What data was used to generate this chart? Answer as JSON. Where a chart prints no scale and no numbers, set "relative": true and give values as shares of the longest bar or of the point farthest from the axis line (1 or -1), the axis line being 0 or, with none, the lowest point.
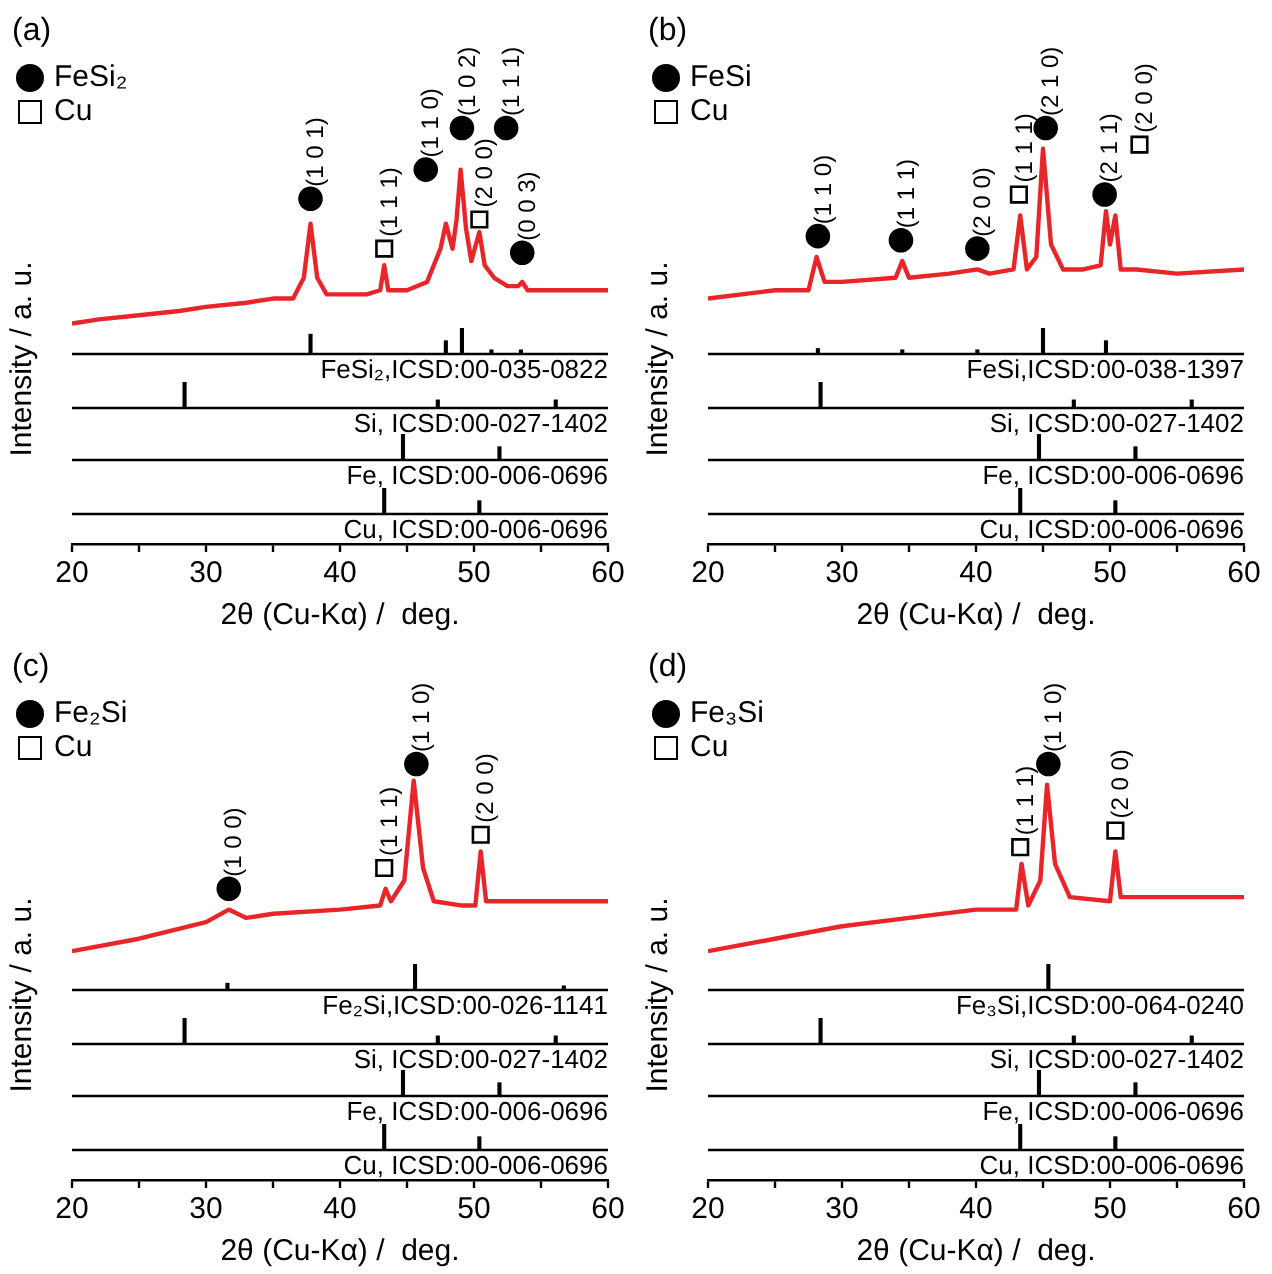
{
  "chart_data": [
    {
      "type": "line",
      "title": "(a)",
      "xlabel": "2θ (Cu-Kα) /  deg.",
      "ylabel": "Intensity / a. u.",
      "relative": true,
      "xlim": [
        20,
        60
      ],
      "xticks": [
        20,
        {
          "value": 25,
          "label": null
        },
        30,
        {
          "value": 35,
          "label": null
        },
        40,
        {
          "value": 45,
          "label": null
        },
        50,
        {
          "value": 55,
          "label": null
        },
        60
      ],
      "tick_labels": "x",
      "legend": "top left",
      "series": [
        {
          "type": "line",
          "color": "#e8262a",
          "x": [
            20,
            22,
            25,
            28,
            30,
            33,
            35,
            36.5,
            37.3,
            37.8,
            38.3,
            39,
            40,
            42,
            43,
            43.3,
            43.6,
            45,
            46.5,
            47.5,
            47.9,
            48.4,
            48.7,
            49,
            49.4,
            49.8,
            50.4,
            50.8,
            51.5,
            52.5,
            53.3,
            53.6,
            54,
            55,
            57,
            60
          ],
          "values": [
            0.53,
            0.54,
            0.55,
            0.56,
            0.57,
            0.58,
            0.59,
            0.59,
            0.64,
            0.77,
            0.64,
            0.6,
            0.6,
            0.6,
            0.61,
            0.67,
            0.61,
            0.61,
            0.63,
            0.71,
            0.77,
            0.71,
            0.78,
            0.9,
            0.76,
            0.68,
            0.75,
            0.67,
            0.64,
            0.62,
            0.62,
            0.63,
            0.61,
            0.61,
            0.61,
            0.61
          ]
        },
        {
          "type": "scatter",
          "name": "FeSi₂",
          "color": "#000000",
          "marker": "circle",
          "x": [
            37.8,
            46.4,
            49.1,
            52.4,
            53.6
          ],
          "values": [
            0.83,
            0.9,
            1,
            1,
            0.7
          ]
        },
        {
          "type": "scatter",
          "name": "Cu",
          "color": "#000000",
          "marker": "square",
          "x": [
            43.3,
            50.4
          ],
          "values": [
            0.71,
            0.78
          ]
        }
      ],
      "annotations": [
        {
          "text": "(1 0 1)",
          "x": 37.8,
          "y": 0.83
        },
        {
          "text": "(1 1 0)",
          "x": 46.4,
          "y": 0.9
        },
        {
          "text": "(1 0 2)",
          "x": 49.1,
          "y": 1
        },
        {
          "text": "(1 1 1)",
          "x": 52.4,
          "y": 1
        },
        {
          "text": "(0 0 3)",
          "x": 53.6,
          "y": 0.7
        },
        {
          "text": "(1 1 1)",
          "x": 43.3,
          "y": 0.71
        },
        {
          "text": "(2 0 0)",
          "x": 50.4,
          "y": 0.78
        }
      ]
    },
    {
      "type": "bar",
      "title": "FeSi₂,ICSD:00-035-0822",
      "relative": true,
      "color": "#000000",
      "xlim": [
        20,
        60
      ],
      "tick_labels": false,
      "x": [
        37.8,
        47.9,
        49.1,
        51.3,
        53.5
      ],
      "values": [
        0.75,
        0.5,
        1,
        0.15,
        0.15
      ]
    },
    {
      "type": "bar",
      "title": "Si, ICSD:00-027-1402",
      "relative": true,
      "color": "#000000",
      "xlim": [
        20,
        60
      ],
      "tick_labels": false,
      "x": [
        28.4,
        47.3,
        56.1
      ],
      "values": [
        1,
        0.3,
        0.3
      ]
    },
    {
      "type": "bar",
      "title": "Fe, ICSD:00-006-0696",
      "relative": true,
      "color": "#000000",
      "xlim": [
        20,
        60
      ],
      "tick_labels": false,
      "x": [
        44.7,
        51.9
      ],
      "values": [
        1,
        0.5
      ]
    },
    {
      "type": "bar",
      "title": "Cu, ICSD:00-006-0696",
      "relative": true,
      "color": "#000000",
      "xlim": [
        20,
        60
      ],
      "tick_labels": false,
      "x": [
        43.3,
        50.4
      ],
      "values": [
        1,
        0.5
      ]
    },
    {
      "type": "line",
      "title": "(b)",
      "xlabel": "2θ (Cu-Kα) /  deg.",
      "ylabel": "Intensity / a. u.",
      "relative": true,
      "xlim": [
        20,
        60
      ],
      "xticks": [
        20,
        {
          "value": 25,
          "label": null
        },
        30,
        {
          "value": 35,
          "label": null
        },
        40,
        {
          "value": 45,
          "label": null
        },
        50,
        {
          "value": 55,
          "label": null
        },
        60
      ],
      "tick_labels": "x",
      "legend": "top left",
      "series": [
        {
          "type": "line",
          "color": "#e8262a",
          "x": [
            20,
            25,
            27.5,
            28.1,
            28.7,
            30,
            34,
            34.5,
            35,
            38,
            40.1,
            41,
            42.8,
            43.3,
            43.8,
            44.5,
            45,
            45.6,
            46.5,
            48,
            49.3,
            49.7,
            50,
            50.4,
            50.8,
            52,
            55,
            60
          ],
          "values": [
            0.59,
            0.61,
            0.61,
            0.69,
            0.63,
            0.63,
            0.64,
            0.68,
            0.64,
            0.65,
            0.66,
            0.65,
            0.66,
            0.79,
            0.66,
            0.69,
            0.95,
            0.72,
            0.66,
            0.66,
            0.67,
            0.8,
            0.72,
            0.79,
            0.66,
            0.66,
            0.65,
            0.66
          ]
        },
        {
          "type": "scatter",
          "name": "FeSi",
          "color": "#000000",
          "marker": "circle",
          "x": [
            28.2,
            34.4,
            40.1,
            45.2,
            49.6
          ],
          "values": [
            0.74,
            0.73,
            0.71,
            1,
            0.84
          ]
        },
        {
          "type": "scatter",
          "name": "Cu",
          "color": "#000000",
          "marker": "square",
          "x": [
            43.2,
            52.2
          ],
          "values": [
            0.84,
            0.96
          ]
        }
      ],
      "annotations": [
        {
          "text": "(1 1 0)",
          "x": 28.2,
          "y": 0.74
        },
        {
          "text": "(1 1 1)",
          "x": 34.4,
          "y": 0.73
        },
        {
          "text": "(2 0 0)",
          "x": 40.1,
          "y": 0.71
        },
        {
          "text": "(2 1 0)",
          "x": 45.2,
          "y": 1
        },
        {
          "text": "(2 1 1)",
          "x": 49.6,
          "y": 0.84
        },
        {
          "text": "(1 1 1)",
          "x": 43.2,
          "y": 0.84
        },
        {
          "text": "(2 0 0)",
          "x": 52.2,
          "y": 0.96
        }
      ]
    },
    {
      "type": "bar",
      "title": "FeSi,ICSD:00-038-1397",
      "relative": true,
      "color": "#000000",
      "xlim": [
        20,
        60
      ],
      "tick_labels": false,
      "x": [
        28.2,
        34.5,
        40.1,
        45,
        49.7
      ],
      "values": [
        0.2,
        0.15,
        0.15,
        1,
        0.5
      ]
    },
    {
      "type": "bar",
      "title": "Si, ICSD:00-027-1402",
      "relative": true,
      "color": "#000000",
      "xlim": [
        20,
        60
      ],
      "tick_labels": false,
      "x": [
        28.4,
        47.3,
        56.1
      ],
      "values": [
        1,
        0.3,
        0.3
      ]
    },
    {
      "type": "bar",
      "title": "Fe, ICSD:00-006-0696",
      "relative": true,
      "color": "#000000",
      "xlim": [
        20,
        60
      ],
      "tick_labels": false,
      "x": [
        44.7,
        51.9
      ],
      "values": [
        1,
        0.5
      ]
    },
    {
      "type": "bar",
      "title": "Cu, ICSD:00-006-0696",
      "relative": true,
      "color": "#000000",
      "xlim": [
        20,
        60
      ],
      "tick_labels": false,
      "x": [
        43.3,
        50.4
      ],
      "values": [
        1,
        0.5
      ]
    },
    {
      "type": "line",
      "title": "(c)",
      "xlabel": "2θ (Cu-Kα) /  deg.",
      "ylabel": "Intensity / a. u.",
      "relative": true,
      "xlim": [
        20,
        60
      ],
      "xticks": [
        20,
        {
          "value": 25,
          "label": null
        },
        30,
        {
          "value": 35,
          "label": null
        },
        40,
        {
          "value": 45,
          "label": null
        },
        50,
        {
          "value": 55,
          "label": null
        },
        60
      ],
      "tick_labels": "x",
      "legend": "top left",
      "series": [
        {
          "type": "line",
          "color": "#e8262a",
          "x": [
            20,
            25,
            30,
            31.7,
            33,
            35,
            40,
            43,
            43.4,
            43.8,
            44.8,
            45.5,
            46.2,
            47,
            49,
            50.1,
            50.5,
            50.9,
            55,
            60
          ],
          "values": [
            0.55,
            0.58,
            0.62,
            0.65,
            0.63,
            0.64,
            0.65,
            0.66,
            0.7,
            0.67,
            0.72,
            0.96,
            0.75,
            0.67,
            0.66,
            0.66,
            0.79,
            0.67,
            0.67,
            0.67
          ]
        },
        {
          "type": "scatter",
          "name": "Fe₂Si",
          "color": "#000000",
          "marker": "circle",
          "x": [
            31.7,
            45.7
          ],
          "values": [
            0.7,
            1
          ]
        },
        {
          "type": "scatter",
          "name": "Cu",
          "color": "#000000",
          "marker": "square",
          "x": [
            43.3,
            50.5
          ],
          "values": [
            0.75,
            0.83
          ]
        }
      ],
      "annotations": [
        {
          "text": "(1 0 0)",
          "x": 31.7,
          "y": 0.7
        },
        {
          "text": "(1 1 0)",
          "x": 45.7,
          "y": 1
        },
        {
          "text": "(1 1 1)",
          "x": 43.3,
          "y": 0.75
        },
        {
          "text": "(2 0 0)",
          "x": 50.5,
          "y": 0.83
        }
      ]
    },
    {
      "type": "bar",
      "title": "Fe₂Si,ICSD:00-026-1141",
      "relative": true,
      "color": "#000000",
      "xlim": [
        20,
        60
      ],
      "tick_labels": false,
      "x": [
        31.6,
        45.6,
        56.7
      ],
      "values": [
        0.25,
        1,
        0.15
      ]
    },
    {
      "type": "bar",
      "title": "Si, ICSD:00-027-1402",
      "relative": true,
      "color": "#000000",
      "xlim": [
        20,
        60
      ],
      "tick_labels": false,
      "x": [
        28.4,
        47.3,
        56.1
      ],
      "values": [
        1,
        0.3,
        0.3
      ]
    },
    {
      "type": "bar",
      "title": "Fe, ICSD:00-006-0696",
      "relative": true,
      "color": "#000000",
      "xlim": [
        20,
        60
      ],
      "tick_labels": false,
      "x": [
        44.7,
        51.9
      ],
      "values": [
        1,
        0.5
      ]
    },
    {
      "type": "bar",
      "title": "Cu, ICSD:00-006-0696",
      "relative": true,
      "color": "#000000",
      "xlim": [
        20,
        60
      ],
      "tick_labels": false,
      "x": [
        43.3,
        50.4
      ],
      "values": [
        1,
        0.5
      ]
    },
    {
      "type": "line",
      "title": "(d)",
      "xlabel": "2θ (Cu-Kα) /  deg.",
      "ylabel": "Intensity / a. u.",
      "relative": true,
      "xlim": [
        20,
        60
      ],
      "xticks": [
        20,
        {
          "value": 25,
          "label": null
        },
        30,
        {
          "value": 35,
          "label": null
        },
        40,
        {
          "value": 45,
          "label": null
        },
        50,
        {
          "value": 55,
          "label": null
        },
        60
      ],
      "tick_labels": "x",
      "legend": "top left",
      "series": [
        {
          "type": "line",
          "color": "#e8262a",
          "x": [
            20,
            25,
            30,
            35,
            40,
            43,
            43.4,
            43.9,
            44.8,
            45.3,
            45.9,
            47,
            50,
            50.4,
            50.8,
            55,
            60
          ],
          "values": [
            0.55,
            0.58,
            0.61,
            0.63,
            0.65,
            0.65,
            0.76,
            0.66,
            0.72,
            0.95,
            0.76,
            0.68,
            0.67,
            0.79,
            0.68,
            0.68,
            0.68
          ]
        },
        {
          "type": "scatter",
          "name": "Fe₃Si",
          "color": "#000000",
          "marker": "circle",
          "x": [
            45.4
          ],
          "values": [
            1
          ]
        },
        {
          "type": "scatter",
          "name": "Cu",
          "color": "#000000",
          "marker": "square",
          "x": [
            43.3,
            50.4
          ],
          "values": [
            0.8,
            0.84
          ]
        }
      ],
      "annotations": [
        {
          "text": "(1 1 0)",
          "x": 45.4,
          "y": 1
        },
        {
          "text": "(1 1 1)",
          "x": 43.3,
          "y": 0.8
        },
        {
          "text": "(2 0 0)",
          "x": 50.4,
          "y": 0.84
        }
      ]
    },
    {
      "type": "bar",
      "title": "Fe₃Si,ICSD:00-064-0240",
      "relative": true,
      "color": "#000000",
      "xlim": [
        20,
        60
      ],
      "tick_labels": false,
      "x": [
        45.4
      ],
      "values": [
        1
      ]
    },
    {
      "type": "bar",
      "title": "Si, ICSD:00-027-1402",
      "relative": true,
      "color": "#000000",
      "xlim": [
        20,
        60
      ],
      "tick_labels": false,
      "x": [
        28.4,
        47.3,
        56.1
      ],
      "values": [
        1,
        0.3,
        0.3
      ]
    },
    {
      "type": "bar",
      "title": "Fe, ICSD:00-006-0696",
      "relative": true,
      "color": "#000000",
      "xlim": [
        20,
        60
      ],
      "tick_labels": false,
      "x": [
        44.7,
        51.9
      ],
      "values": [
        1,
        0.5
      ]
    },
    {
      "type": "bar",
      "title": "Cu, ICSD:00-006-0696",
      "relative": true,
      "color": "#000000",
      "xlim": [
        20,
        60
      ],
      "tick_labels": false,
      "x": [
        43.3,
        50.4
      ],
      "values": [
        1,
        0.5
      ]
    }
  ]
}
